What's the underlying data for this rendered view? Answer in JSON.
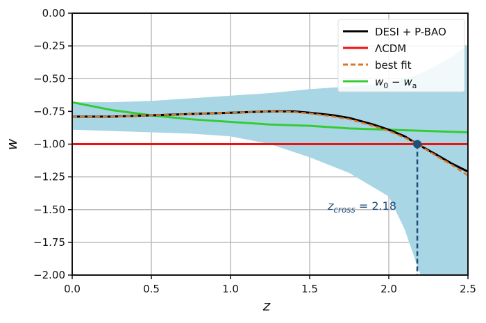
{
  "chart_data": {
    "type": "line",
    "xlabel": "z",
    "ylabel": "w",
    "xlim": [
      0.0,
      2.5
    ],
    "ylim": [
      -2.0,
      0.0
    ],
    "xticks": [
      "0.0",
      "0.5",
      "1.0",
      "1.5",
      "2.0",
      "2.5"
    ],
    "yticks": [
      "0.00",
      "−0.25",
      "−0.50",
      "−0.75",
      "−1.00",
      "−1.25",
      "−1.50",
      "−1.75",
      "−2.00"
    ],
    "grid": true,
    "legend_position": "top-right",
    "band": {
      "color": "#a9d6e5",
      "z": [
        0.0,
        0.25,
        0.5,
        0.75,
        1.0,
        1.25,
        1.5,
        1.75,
        2.0,
        2.1,
        2.2,
        2.3,
        2.4,
        2.5
      ],
      "upper": [
        -0.68,
        -0.68,
        -0.67,
        -0.65,
        -0.63,
        -0.61,
        -0.58,
        -0.56,
        -0.53,
        -0.5,
        -0.46,
        -0.4,
        -0.33,
        -0.24
      ],
      "lower": [
        -0.89,
        -0.9,
        -0.91,
        -0.92,
        -0.94,
        -1.0,
        -1.1,
        -1.22,
        -1.4,
        -1.65,
        -2.2,
        -2.6,
        -3.0,
        -3.4
      ]
    },
    "series": [
      {
        "name": "DESI + P-BAO",
        "color": "#000000",
        "style": "solid",
        "z": [
          0.0,
          0.25,
          0.5,
          0.75,
          1.0,
          1.25,
          1.4,
          1.5,
          1.65,
          1.75,
          1.9,
          2.0,
          2.1,
          2.18,
          2.3,
          2.4,
          2.5
        ],
        "w": [
          -0.79,
          -0.79,
          -0.78,
          -0.77,
          -0.76,
          -0.75,
          -0.75,
          -0.76,
          -0.78,
          -0.8,
          -0.85,
          -0.89,
          -0.94,
          -1.0,
          -1.08,
          -1.15,
          -1.21
        ]
      },
      {
        "name": "ΛCDM",
        "color": "#ee1111",
        "style": "solid",
        "z": [
          0.0,
          2.5
        ],
        "w": [
          -1.0,
          -1.0
        ]
      },
      {
        "name": "best fit",
        "color": "#dd7722",
        "style": "dashed",
        "z": [
          0.0,
          0.25,
          0.5,
          0.75,
          1.0,
          1.25,
          1.4,
          1.5,
          1.65,
          1.75,
          1.9,
          2.0,
          2.1,
          2.18,
          2.3,
          2.4,
          2.5
        ],
        "w": [
          -0.79,
          -0.79,
          -0.78,
          -0.77,
          -0.76,
          -0.75,
          -0.755,
          -0.765,
          -0.79,
          -0.81,
          -0.86,
          -0.9,
          -0.95,
          -1.0,
          -1.09,
          -1.16,
          -1.24
        ]
      },
      {
        "name": "w0 − wa",
        "color": "#33cc33",
        "style": "solid",
        "z": [
          0.0,
          0.25,
          0.5,
          0.75,
          1.0,
          1.25,
          1.5,
          1.75,
          2.0,
          2.25,
          2.5
        ],
        "w": [
          -0.68,
          -0.74,
          -0.78,
          -0.81,
          -0.83,
          -0.85,
          -0.86,
          -0.88,
          -0.89,
          -0.9,
          -0.91
        ]
      }
    ],
    "legend": [
      {
        "label_main": "DESI + P-BAO",
        "label_sub": ""
      },
      {
        "label_main": "ΛCDM",
        "label_sub": ""
      },
      {
        "label_main": "best fit",
        "label_sub": ""
      },
      {
        "label_main": "w",
        "sub1": "0",
        "mid": " − w",
        "sub2": "a"
      }
    ],
    "crossing": {
      "z": 2.18,
      "w": -1.0,
      "color": "#1f4e79",
      "label_var": "z",
      "label_sub": "cross",
      "label_value": " = 2.18"
    }
  }
}
